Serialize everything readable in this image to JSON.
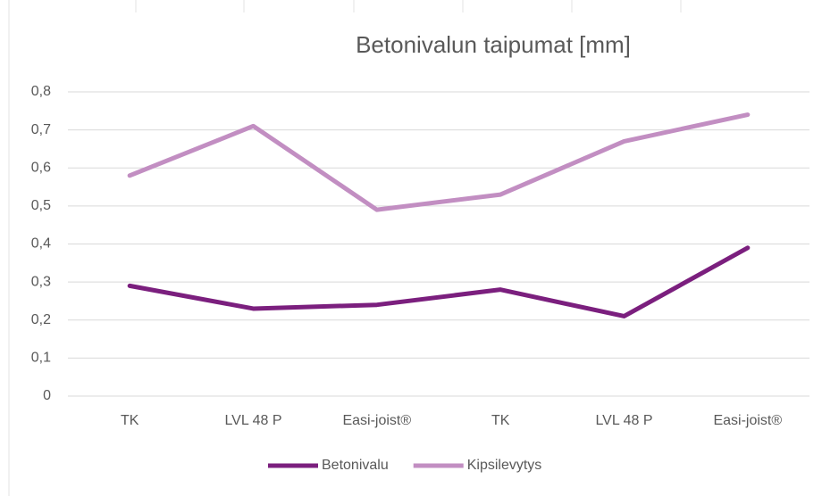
{
  "chart_data": {
    "type": "line",
    "title": "Betonivalun taipumat [mm]",
    "categories": [
      "TK",
      "LVL 48 P",
      "Easi-joist®",
      "TK",
      "LVL 48 P",
      "Easi-joist®"
    ],
    "series": [
      {
        "name": "Betonivalu",
        "color": "#7b1f7e",
        "values": [
          0.29,
          0.23,
          0.24,
          0.28,
          0.21,
          0.39
        ]
      },
      {
        "name": "Kipsilevytys",
        "color": "#c28ec2",
        "values": [
          0.58,
          0.71,
          0.49,
          0.53,
          0.67,
          0.74
        ]
      }
    ],
    "ylim": [
      0,
      0.8
    ],
    "yticks": [
      0,
      {
        "value": 0.1,
        "label": "0,1"
      },
      {
        "value": 0.2,
        "label": "0,2"
      },
      {
        "value": 0.3,
        "label": "0,3"
      },
      {
        "value": 0.4,
        "label": "0,4"
      },
      {
        "value": 0.5,
        "label": "0,5"
      },
      {
        "value": 0.6,
        "label": "0,6"
      },
      {
        "value": 0.7,
        "label": "0,7"
      },
      {
        "value": 0.8,
        "label": "0,8"
      }
    ],
    "grid": true,
    "legend": "bottom"
  }
}
